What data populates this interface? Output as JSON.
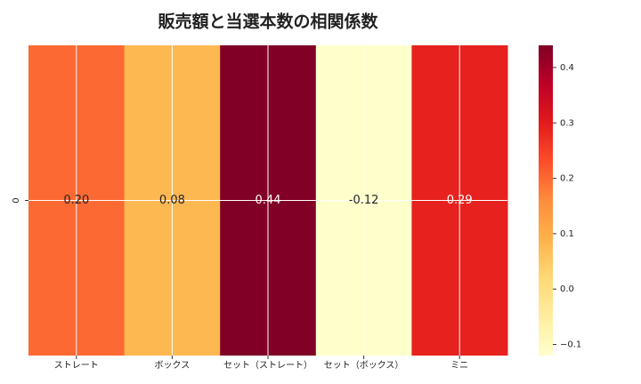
{
  "chart_data": {
    "type": "heatmap",
    "title": "販売額と当選本数の相関係数",
    "categories": [
      "ストレート",
      "ボックス",
      "セット（ストレート）",
      "セット（ボックス）",
      "ミニ"
    ],
    "rows": [
      "0"
    ],
    "values": [
      0.2,
      0.08,
      0.44,
      -0.12,
      0.29
    ],
    "value_labels": [
      "0.20",
      "0.08",
      "0.44",
      "-0.12",
      "0.29"
    ],
    "colormap": "YlOrRd",
    "clim": [
      -0.12,
      0.44
    ],
    "cticks": [
      {
        "value": -0.1,
        "label": "−0.1"
      },
      {
        "value": 0.0,
        "label": "0.0"
      },
      {
        "value": 0.1,
        "label": "0.1"
      },
      {
        "value": 0.2,
        "label": "0.2"
      },
      {
        "value": 0.3,
        "label": "0.3"
      },
      {
        "value": 0.4,
        "label": "0.4"
      }
    ],
    "grid": true
  }
}
